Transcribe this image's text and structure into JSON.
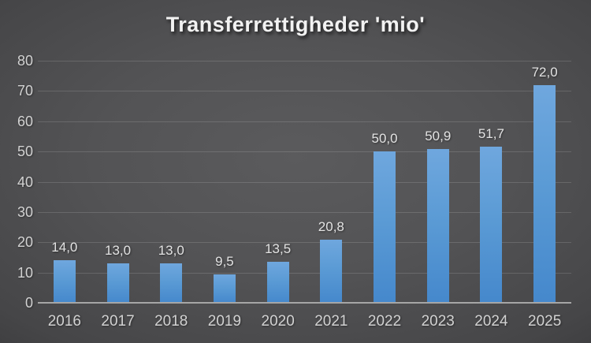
{
  "chart_data": {
    "type": "bar",
    "title": "Transferrettigheder 'mio'",
    "categories": [
      "2016",
      "2017",
      "2018",
      "2019",
      "2020",
      "2021",
      "2022",
      "2023",
      "2024",
      "2025"
    ],
    "values": [
      14.0,
      13.0,
      13.0,
      9.5,
      13.5,
      20.8,
      50.0,
      50.9,
      51.7,
      72.0
    ],
    "value_labels": [
      "14,0",
      "13,0",
      "13,0",
      "9,5",
      "13,5",
      "20,8",
      "50,0",
      "50,9",
      "51,7",
      "72,0"
    ],
    "xlabel": "",
    "ylabel": "",
    "ylim": [
      0,
      80
    ],
    "ytick_step": 10,
    "ytick_labels": [
      "0",
      "10",
      "20",
      "30",
      "40",
      "50",
      "60",
      "70",
      "80"
    ],
    "grid": true,
    "legend": false,
    "series_name": "Transferrettigheder"
  },
  "colors": {
    "bar_top": "#6FA7DE",
    "bar_mid": "#5B9BD5",
    "bar_bottom": "#4588CC",
    "gridline": "rgba(255,255,255,0.14)",
    "axis_line": "#A6A6A6",
    "axis_label_text": "#D2D2D2",
    "data_label_text": "#E3E3E3",
    "title_text": "#F2F2F2",
    "background_center": "#5B5B5D",
    "background_edge": "#222224"
  }
}
